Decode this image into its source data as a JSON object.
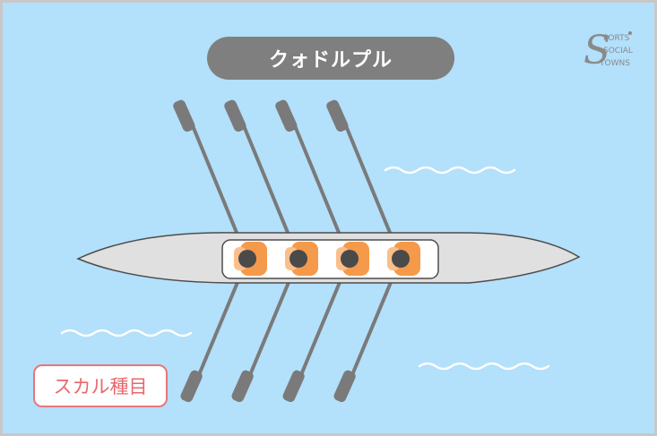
{
  "title": "クォドルプル",
  "category_tag": "スカル種目",
  "logo": {
    "letter": "S",
    "text_line1": "PORTS",
    "text_line2": "SOCIAL",
    "text_line3": "TOWNS"
  },
  "colors": {
    "water": "#b3e0fb",
    "hull": "#e0e0e0",
    "oar": "#7a7a7a",
    "rower_orange": "#f59a4a",
    "rower_head": "#4a4a4a",
    "title_bg": "#7f7f7f",
    "tag_accent": "#e8767a"
  },
  "rowers": 4
}
